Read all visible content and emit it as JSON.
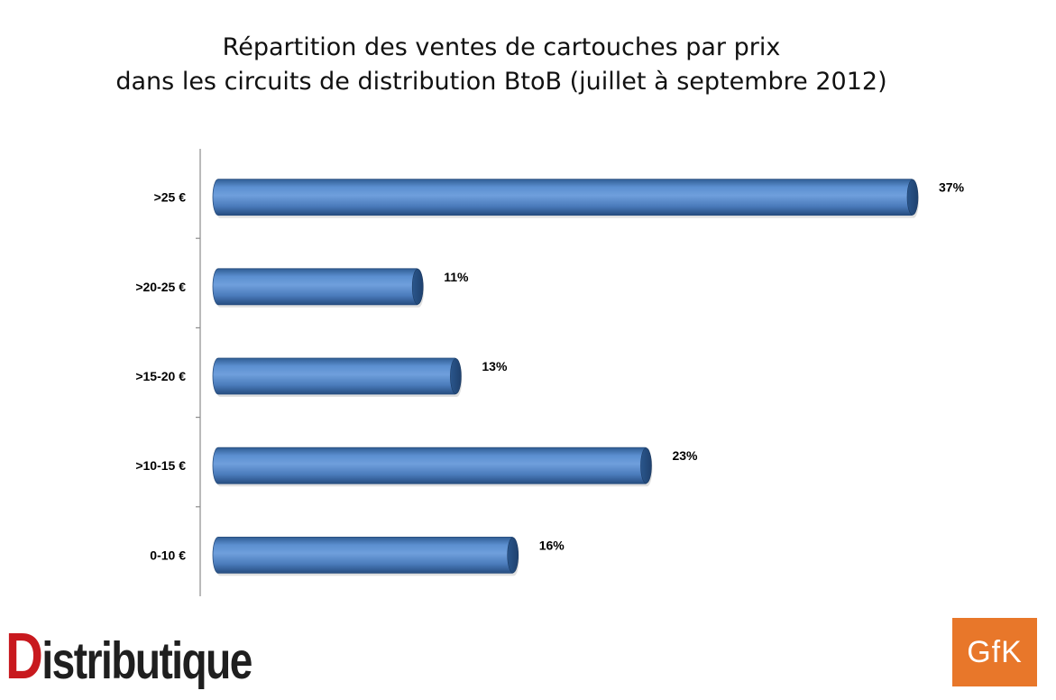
{
  "chart_data": {
    "type": "bar",
    "orientation": "horizontal",
    "title_lines": [
      "Répartition des ventes de cartouches par prix",
      "dans les circuits de distribution BtoB (juillet à septembre 2012)"
    ],
    "categories": [
      ">25 €",
      ">20-25 €",
      ">15-20 €",
      ">10-15 €",
      "0-10 €"
    ],
    "values": [
      37,
      11,
      13,
      23,
      16
    ],
    "value_labels": [
      "37%",
      "11%",
      "13%",
      "23%",
      "16%"
    ],
    "unit": "%",
    "xlim": [
      0,
      37
    ],
    "grid": false,
    "legend": "none",
    "bar_color": "#4f81bd",
    "bar_shade_dark": "#2b5486",
    "bar_shade_light": "#7aa6dc"
  },
  "logos": {
    "distributique": {
      "first_letter": "D",
      "rest": "istributique",
      "red": "#c8191e"
    },
    "gfk": {
      "text": "GfK",
      "color": "#e8772a"
    }
  }
}
